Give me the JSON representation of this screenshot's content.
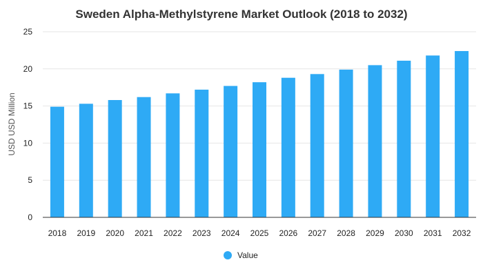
{
  "chart_data": {
    "type": "bar",
    "title": "Sweden Alpha-Methylstyrene Market Outlook (2018 to 2032)",
    "xlabel": "",
    "ylabel": "USD USD Million",
    "ylim": [
      0,
      25
    ],
    "yticks": [
      0,
      5,
      10,
      15,
      20,
      25
    ],
    "grid": true,
    "legend_position": "bottom",
    "categories": [
      "2018",
      "2019",
      "2020",
      "2021",
      "2022",
      "2023",
      "2024",
      "2025",
      "2026",
      "2027",
      "2028",
      "2029",
      "2030",
      "2031",
      "2032"
    ],
    "series": [
      {
        "name": "Value",
        "color": "#2eaaf5",
        "values": [
          14.9,
          15.3,
          15.8,
          16.2,
          16.7,
          17.2,
          17.7,
          18.2,
          18.8,
          19.3,
          19.9,
          20.5,
          21.1,
          21.8,
          22.4
        ]
      }
    ]
  }
}
